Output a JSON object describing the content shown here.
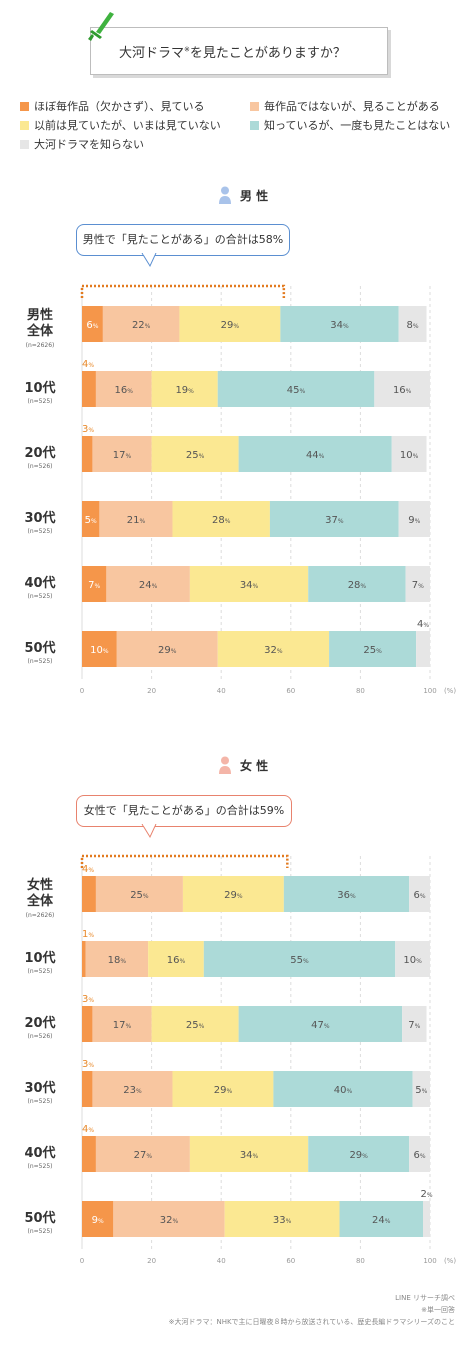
{
  "title": "大河ドラマ",
  "title_mark": "※",
  "title_rest": "を見たことがありますか？",
  "legend": [
    {
      "label": "ほぼ毎作品（欠かさず）、見ている",
      "color": "#f5964a"
    },
    {
      "label": "毎作品ではないが、見ることがある",
      "color": "#f8c6a0"
    },
    {
      "label": "以前は見ていたが、いまは見ていない",
      "color": "#fbe892"
    },
    {
      "label": "知っているが、一度も見たことはない",
      "color": "#acdad8"
    },
    {
      "label": "大河ドラマを知らない",
      "color": "#e6e6e6"
    }
  ],
  "colors": {
    "male_accent": "#5b8fd1",
    "female_accent": "#e8836e",
    "bracket": "#e27a1f",
    "first_label": "#e88a2c"
  },
  "sections": {
    "male": {
      "heading": "男 性",
      "callout": "男性で「見たことがある」の合計は58%"
    },
    "female": {
      "heading": "女 性",
      "callout": "女性で「見たことがある」の合計は59%"
    }
  },
  "axis": {
    "ticks": [
      "0",
      "20",
      "40",
      "60",
      "80",
      "100"
    ],
    "unit": "(%)"
  },
  "chart_data": [
    {
      "type": "bar",
      "title": "男 性",
      "stacked": true,
      "orientation": "horizontal",
      "categories": [
        {
          "label": "男性全体",
          "n": "(n=2626)"
        },
        {
          "label": "10代",
          "n": "(n=525)"
        },
        {
          "label": "20代",
          "n": "(n=526)"
        },
        {
          "label": "30代",
          "n": "(n=525)"
        },
        {
          "label": "40代",
          "n": "(n=525)"
        },
        {
          "label": "50代",
          "n": "(n=525)"
        }
      ],
      "series": [
        {
          "name": "ほぼ毎作品（欠かさず）、見ている",
          "values": [
            6,
            4,
            3,
            5,
            7,
            10
          ]
        },
        {
          "name": "毎作品ではないが、見ることがある",
          "values": [
            22,
            16,
            17,
            21,
            24,
            29
          ]
        },
        {
          "name": "以前は見ていたが、いまは見ていない",
          "values": [
            29,
            19,
            25,
            28,
            34,
            32
          ]
        },
        {
          "name": "知っているが、一度も見たことはない",
          "values": [
            34,
            45,
            44,
            37,
            28,
            25
          ]
        },
        {
          "name": "大河ドラマを知らない",
          "values": [
            8,
            16,
            10,
            9,
            7,
            4
          ]
        }
      ],
      "xlim": [
        0,
        100
      ],
      "grid": true
    },
    {
      "type": "bar",
      "title": "女 性",
      "stacked": true,
      "orientation": "horizontal",
      "categories": [
        {
          "label": "女性全体",
          "n": "(n=2626)"
        },
        {
          "label": "10代",
          "n": "(n=525)"
        },
        {
          "label": "20代",
          "n": "(n=526)"
        },
        {
          "label": "30代",
          "n": "(n=525)"
        },
        {
          "label": "40代",
          "n": "(n=525)"
        },
        {
          "label": "50代",
          "n": "(n=525)"
        }
      ],
      "series": [
        {
          "name": "ほぼ毎作品（欠かさず）、見ている",
          "values": [
            4,
            1,
            3,
            3,
            4,
            9
          ]
        },
        {
          "name": "毎作品ではないが、見ることがある",
          "values": [
            25,
            18,
            17,
            23,
            27,
            32
          ]
        },
        {
          "name": "以前は見ていたが、いまは見ていない",
          "values": [
            29,
            16,
            25,
            29,
            34,
            33
          ]
        },
        {
          "name": "知っているが、一度も見たことはない",
          "values": [
            36,
            55,
            47,
            40,
            29,
            24
          ]
        },
        {
          "name": "大河ドラマを知らない",
          "values": [
            6,
            10,
            7,
            5,
            6,
            2
          ]
        }
      ],
      "xlim": [
        0,
        100
      ],
      "grid": true
    }
  ],
  "footer": {
    "source": "LINE リサーチ調べ",
    "note1": "※単一回答",
    "note2": "※大河ドラマ：NHKで主に日曜夜８時から放送されている、歴史長編ドラマシリーズのこと"
  }
}
